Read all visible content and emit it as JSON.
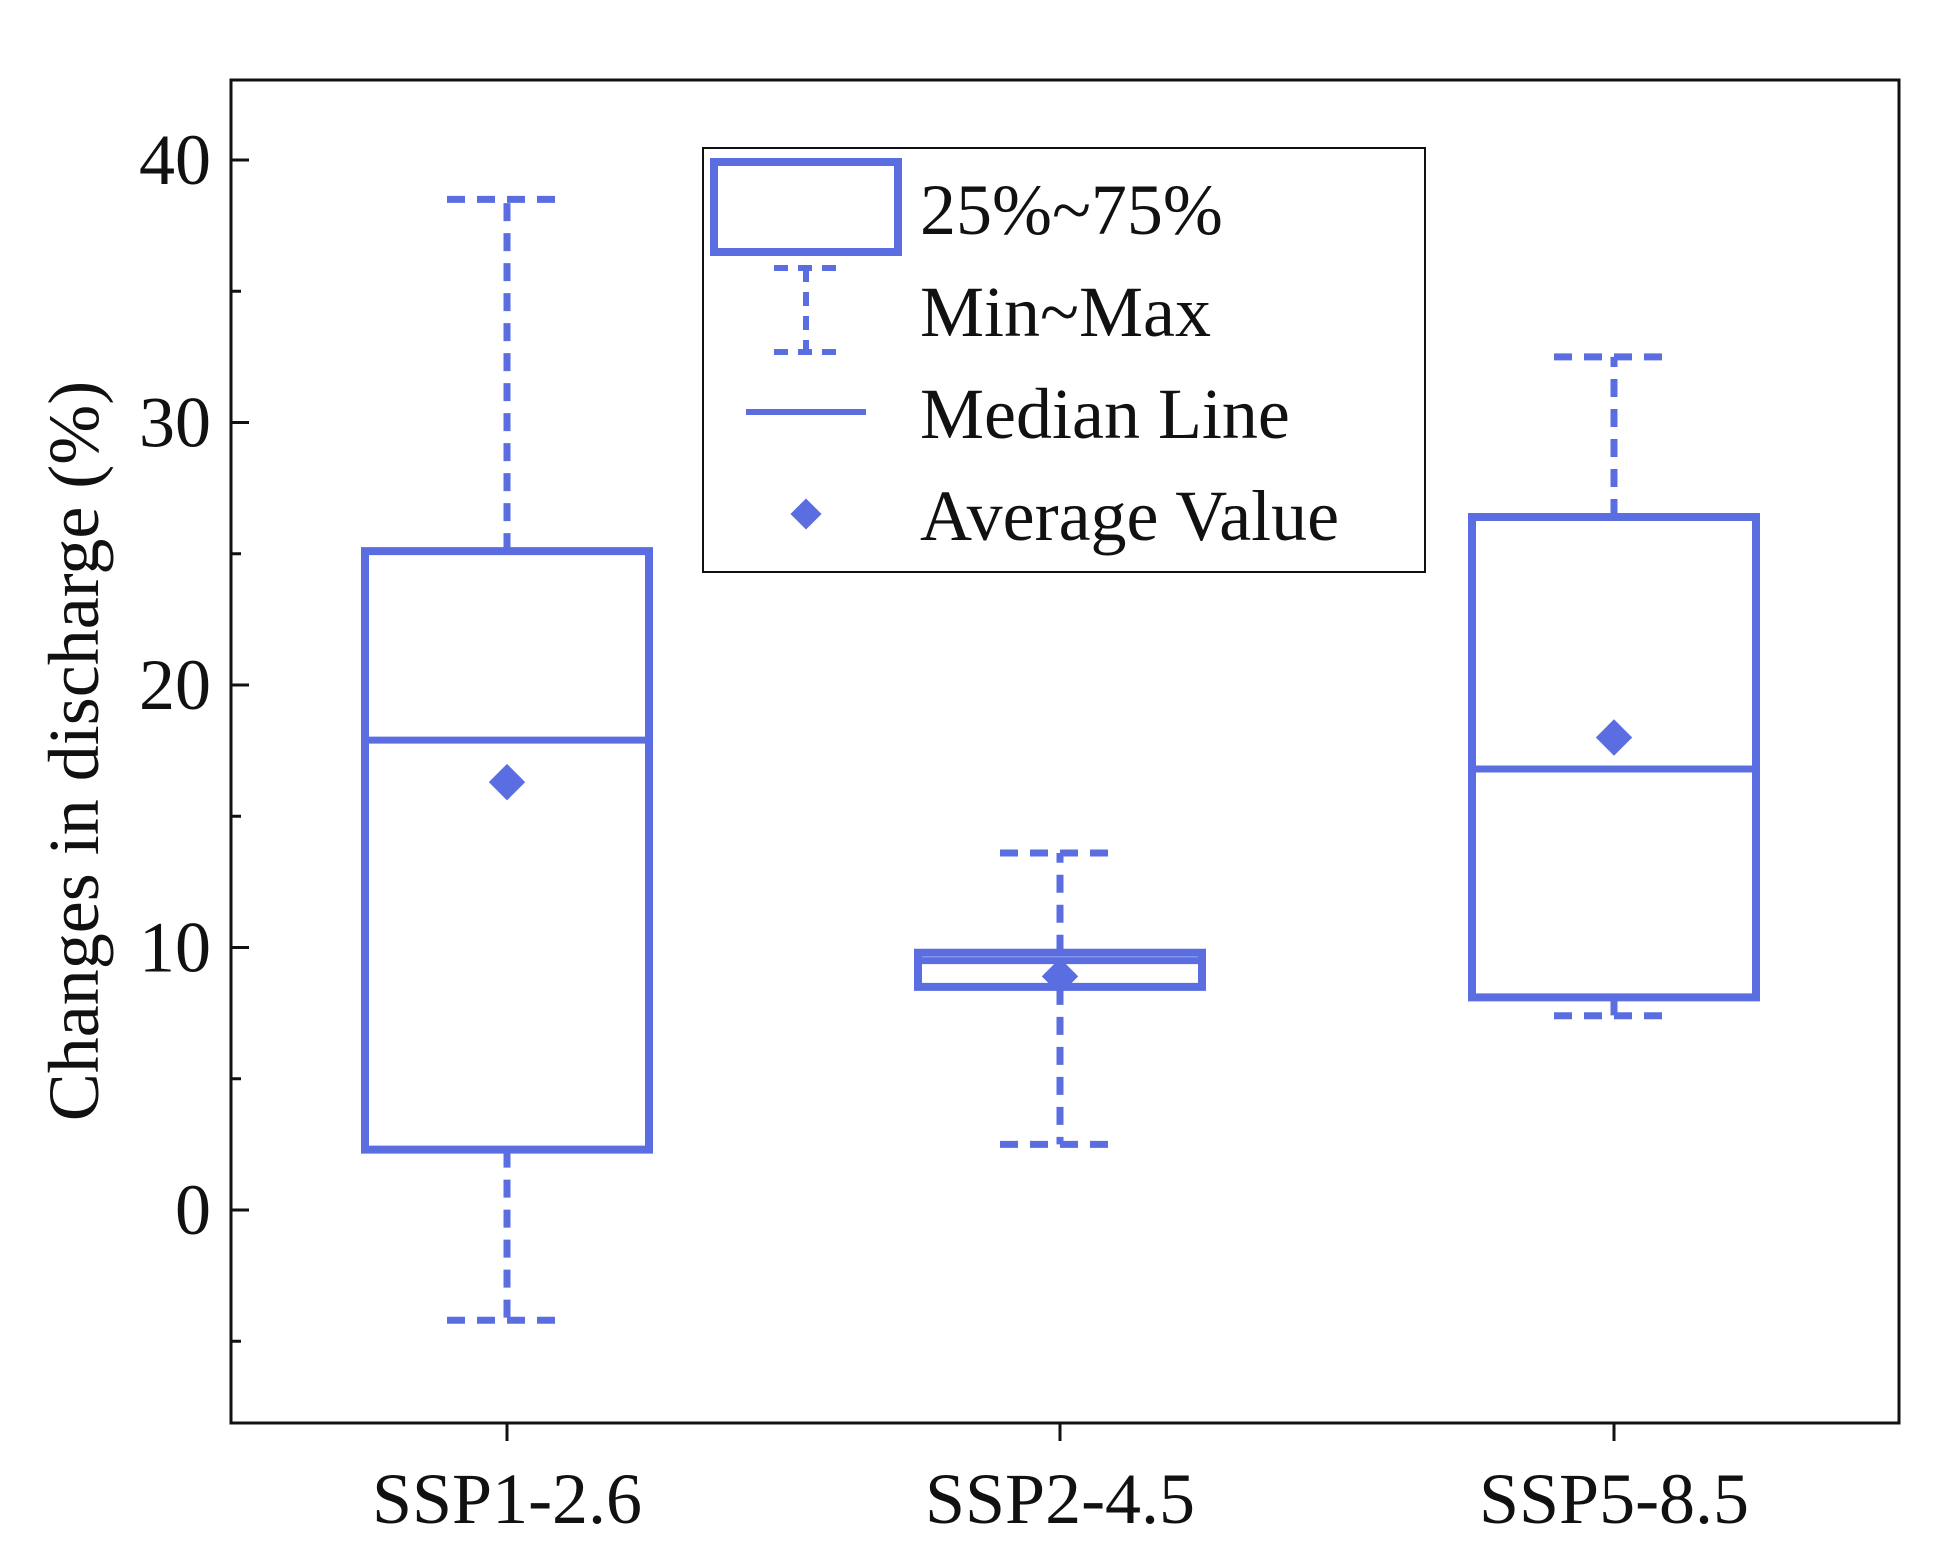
{
  "chart_data": {
    "type": "box",
    "title": "",
    "xlabel": "",
    "ylabel": "Changes in discharge (%)",
    "ylim": [
      -8,
      43
    ],
    "yticks": [
      0,
      10,
      20,
      30,
      40
    ],
    "y_minor_ticks": [
      -5,
      5,
      15,
      25,
      35
    ],
    "categories": [
      "SSP1-2.6",
      "SSP2-4.5",
      "SSP5-8.5"
    ],
    "boxes": [
      {
        "name": "SSP1-2.6",
        "min": -4.2,
        "q1": 2.3,
        "median": 17.9,
        "q3": 25.1,
        "max": 38.5,
        "mean": 16.3
      },
      {
        "name": "SSP2-4.5",
        "min": 2.5,
        "q1": 8.5,
        "median": 9.5,
        "q3": 9.8,
        "max": 13.6,
        "mean": 8.9
      },
      {
        "name": "SSP5-8.5",
        "min": 7.4,
        "q1": 8.1,
        "median": 16.8,
        "q3": 26.4,
        "max": 32.5,
        "mean": 18.0
      }
    ],
    "color": "#5b6ee1",
    "legend": {
      "position": "top-center",
      "entries": [
        {
          "key": "box",
          "label": "25%~75%"
        },
        {
          "key": "whisker",
          "label": "Min~Max"
        },
        {
          "key": "median",
          "label": "Median Line"
        },
        {
          "key": "mean",
          "label": "Average Value"
        }
      ]
    }
  }
}
